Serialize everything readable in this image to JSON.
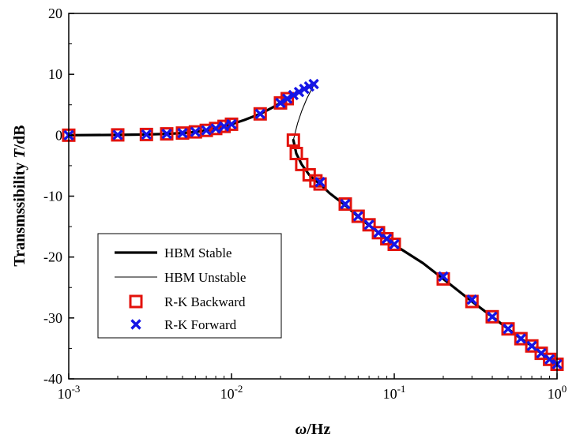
{
  "chart_data": {
    "type": "line",
    "xscale": "log",
    "xlim": [
      0.001,
      1
    ],
    "ylim": [
      -40,
      20
    ],
    "xlabel": {
      "symbol": "ω",
      "unit": "/Hz"
    },
    "ylabel": {
      "prefix": "Transmssibility ",
      "symbol": "T",
      "unit": "/dB"
    },
    "x_ticks": [
      {
        "base": "10",
        "exp": "-3",
        "value": 0.001
      },
      {
        "base": "10",
        "exp": "-2",
        "value": 0.01
      },
      {
        "base": "10",
        "exp": "-1",
        "value": 0.1
      },
      {
        "base": "10",
        "exp": "0",
        "value": 1
      }
    ],
    "y_ticks": [
      -40,
      -30,
      -20,
      -10,
      0,
      10,
      20
    ],
    "grid": false,
    "legend": {
      "position": "bottom-left",
      "entries": [
        {
          "label": "HBM Stable",
          "style": "thick-line"
        },
        {
          "label": "HBM Unstable",
          "style": "thin-line"
        },
        {
          "label": "R-K Backward",
          "style": "red-square"
        },
        {
          "label": "R-K Forward",
          "style": "blue-x"
        }
      ]
    },
    "colors": {
      "backward": "#e3120b",
      "forward": "#1515e6",
      "line": "#000000"
    },
    "series": [
      {
        "name": "HBM Stable",
        "x": [
          0.001,
          0.002,
          0.003,
          0.004,
          0.005,
          0.006,
          0.007,
          0.008,
          0.009,
          0.01,
          0.012,
          0.015,
          0.018,
          0.02,
          0.022,
          0.024,
          0.026,
          0.028,
          0.03,
          0.031,
          0.032,
          0.0324
        ],
        "y": [
          0,
          0.05,
          0.12,
          0.22,
          0.35,
          0.55,
          0.8,
          1.1,
          1.45,
          1.8,
          2.5,
          3.5,
          4.6,
          5.3,
          6.0,
          6.6,
          7.1,
          7.6,
          8.0,
          8.2,
          8.4,
          8.5
        ]
      },
      {
        "name": "HBM Unstable",
        "x": [
          0.0324,
          0.031,
          0.029,
          0.027,
          0.0255,
          0.0245,
          0.024
        ],
        "y": [
          8.5,
          7.5,
          6.0,
          4.0,
          2.0,
          0.2,
          -0.8
        ]
      },
      {
        "name": "HBM Stable",
        "x": [
          0.024,
          0.025,
          0.027,
          0.03,
          0.033,
          0.035,
          0.04,
          0.05,
          0.06,
          0.07,
          0.08,
          0.09,
          0.1,
          0.15,
          0.2,
          0.3,
          0.4,
          0.5,
          0.6,
          0.7,
          0.8,
          0.9,
          1.0
        ],
        "y": [
          -0.8,
          -3.0,
          -4.8,
          -6.5,
          -7.5,
          -8.0,
          -9.5,
          -11.5,
          -13.4,
          -14.8,
          -16.0,
          -17.0,
          -18.0,
          -21.0,
          -23.6,
          -27.3,
          -29.8,
          -31.8,
          -33.4,
          -34.6,
          -35.8,
          -36.8,
          -37.6
        ]
      },
      {
        "name": "R-K Backward",
        "x": [
          0.001,
          0.002,
          0.003,
          0.004,
          0.005,
          0.006,
          0.007,
          0.008,
          0.009,
          0.01,
          0.015,
          0.02,
          0.022,
          0.024,
          0.025,
          0.027,
          0.03,
          0.033,
          0.035,
          0.05,
          0.06,
          0.07,
          0.08,
          0.09,
          0.1,
          0.2,
          0.3,
          0.4,
          0.5,
          0.6,
          0.7,
          0.8,
          0.9,
          1.0
        ],
        "y": [
          0,
          0.05,
          0.12,
          0.22,
          0.35,
          0.55,
          0.8,
          1.1,
          1.45,
          1.8,
          3.5,
          5.3,
          6.0,
          -0.8,
          -3.0,
          -4.8,
          -6.5,
          -7.5,
          -8.0,
          -11.3,
          -13.3,
          -14.7,
          -16.0,
          -17.0,
          -17.9,
          -23.6,
          -27.3,
          -29.8,
          -31.8,
          -33.4,
          -34.6,
          -35.8,
          -36.8,
          -37.6
        ]
      },
      {
        "name": "R-K Forward",
        "x": [
          0.001,
          0.002,
          0.003,
          0.004,
          0.005,
          0.006,
          0.007,
          0.008,
          0.009,
          0.01,
          0.015,
          0.02,
          0.022,
          0.024,
          0.026,
          0.028,
          0.03,
          0.032,
          0.035,
          0.05,
          0.06,
          0.07,
          0.08,
          0.09,
          0.1,
          0.2,
          0.3,
          0.4,
          0.5,
          0.6,
          0.7,
          0.8,
          0.9,
          1.0
        ],
        "y": [
          0,
          0.05,
          0.12,
          0.22,
          0.35,
          0.55,
          0.8,
          1.1,
          1.45,
          1.8,
          3.5,
          5.3,
          6.0,
          6.6,
          7.1,
          7.6,
          8.0,
          8.4,
          -7.7,
          -11.3,
          -13.3,
          -14.7,
          -16.0,
          -17.0,
          -17.9,
          -23.2,
          -27.0,
          -29.8,
          -31.8,
          -33.4,
          -34.6,
          -35.8,
          -36.8,
          -37.6
        ]
      }
    ]
  }
}
